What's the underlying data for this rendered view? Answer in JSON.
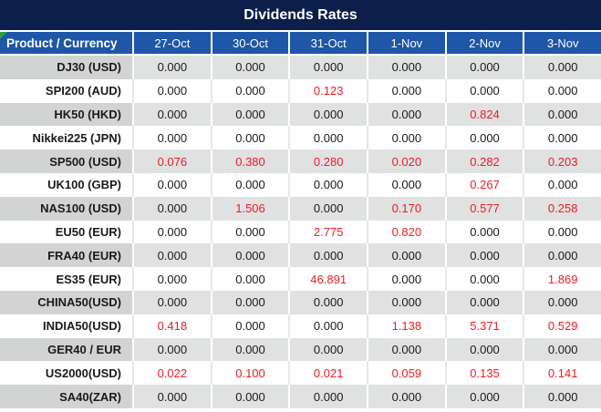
{
  "title": "Dividends Rates",
  "table": {
    "product_header": "Product / Currency",
    "date_columns": [
      "27-Oct",
      "30-Oct",
      "31-Oct",
      "1-Nov",
      "2-Nov",
      "3-Nov"
    ],
    "rows": [
      {
        "product": "DJ30 (USD)",
        "values": [
          "0.000",
          "0.000",
          "0.000",
          "0.000",
          "0.000",
          "0.000"
        ],
        "red": [
          0,
          0,
          0,
          0,
          0,
          0
        ]
      },
      {
        "product": "SPI200 (AUD)",
        "values": [
          "0.000",
          "0.000",
          "0.123",
          "0.000",
          "0.000",
          "0.000"
        ],
        "red": [
          0,
          0,
          1,
          0,
          0,
          0
        ]
      },
      {
        "product": "HK50 (HKD)",
        "values": [
          "0.000",
          "0.000",
          "0.000",
          "0.000",
          "0.824",
          "0.000"
        ],
        "red": [
          0,
          0,
          0,
          0,
          1,
          0
        ]
      },
      {
        "product": "Nikkei225 (JPN)",
        "values": [
          "0.000",
          "0.000",
          "0.000",
          "0.000",
          "0.000",
          "0.000"
        ],
        "red": [
          0,
          0,
          0,
          0,
          0,
          0
        ]
      },
      {
        "product": "SP500 (USD)",
        "values": [
          "0.076",
          "0.380",
          "0.280",
          "0.020",
          "0.282",
          "0.203"
        ],
        "red": [
          1,
          1,
          1,
          1,
          1,
          1
        ]
      },
      {
        "product": "UK100 (GBP)",
        "values": [
          "0.000",
          "0.000",
          "0.000",
          "0.000",
          "0.267",
          "0.000"
        ],
        "red": [
          0,
          0,
          0,
          0,
          1,
          0
        ]
      },
      {
        "product": "NAS100 (USD)",
        "values": [
          "0.000",
          "1.506",
          "0.000",
          "0.170",
          "0.577",
          "0.258"
        ],
        "red": [
          0,
          1,
          0,
          1,
          1,
          1
        ]
      },
      {
        "product": "EU50 (EUR)",
        "values": [
          "0.000",
          "0.000",
          "2.775",
          "0.820",
          "0.000",
          "0.000"
        ],
        "red": [
          0,
          0,
          1,
          1,
          0,
          0
        ]
      },
      {
        "product": "FRA40 (EUR)",
        "values": [
          "0.000",
          "0.000",
          "0.000",
          "0.000",
          "0.000",
          "0.000"
        ],
        "red": [
          0,
          0,
          0,
          0,
          0,
          0
        ]
      },
      {
        "product": "ES35 (EUR)",
        "values": [
          "0.000",
          "0.000",
          "46.891",
          "0.000",
          "0.000",
          "1.869"
        ],
        "red": [
          0,
          0,
          1,
          0,
          0,
          1
        ]
      },
      {
        "product": "CHINA50(USD)",
        "values": [
          "0.000",
          "0.000",
          "0.000",
          "0.000",
          "0.000",
          "0.000"
        ],
        "red": [
          0,
          0,
          0,
          0,
          0,
          0
        ]
      },
      {
        "product": "INDIA50(USD)",
        "values": [
          "0.418",
          "0.000",
          "0.000",
          "1.138",
          "5.371",
          "0.529"
        ],
        "red": [
          1,
          0,
          0,
          1,
          1,
          1
        ]
      },
      {
        "product": "GER40 / EUR",
        "values": [
          "0.000",
          "0.000",
          "0.000",
          "0.000",
          "0.000",
          "0.000"
        ],
        "red": [
          0,
          0,
          0,
          0,
          0,
          0
        ]
      },
      {
        "product": "US2000(USD)",
        "values": [
          "0.022",
          "0.100",
          "0.021",
          "0.059",
          "0.135",
          "0.141"
        ],
        "red": [
          1,
          1,
          1,
          1,
          1,
          1
        ]
      },
      {
        "product": "SA40(ZAR)",
        "values": [
          "0.000",
          "0.000",
          "0.000",
          "0.000",
          "0.000",
          "0.000"
        ],
        "red": [
          0,
          0,
          0,
          0,
          0,
          0
        ]
      }
    ]
  },
  "icons": {
    "corner_marker": "green-corner-triangle"
  },
  "colors": {
    "title_bar_bg": "#0c1e4a",
    "header_bg": "#1e56a8",
    "header_text": "#ffffff",
    "stripe_product_bg": "#d2d3d3",
    "stripe_value_bg": "#e0e1e1",
    "text": "#1a1a1a",
    "highlight_value": "#ed1c24",
    "corner_marker_green": "#2f9e41"
  }
}
